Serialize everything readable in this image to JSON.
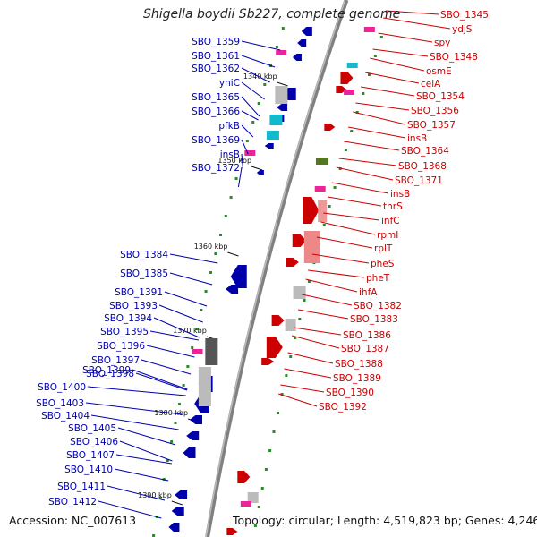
{
  "title": "Shigella boydii Sb227, complete genome",
  "accession": "Accession: NC_007613",
  "topology": "Topology: circular; Length: 4,519,823 bp; Genes: 4,246",
  "colors": {
    "forward": "#0000aa",
    "reverse": "#cc0000",
    "backbone": "#808080",
    "ticks": "#2a8a2a"
  },
  "kbp_markers": [
    "1340 kbp",
    "1350 kbp",
    "1360 kbp",
    "1370 kbp",
    "1380 kbp",
    "1390 kbp"
  ],
  "left_genes": [
    "SBO_1359",
    "SBO_1361",
    "SBO_1362",
    "yniC",
    "SBO_1365",
    "SBO_1366",
    "pfkB",
    "SBO_1369",
    "insB",
    "SBO_1372",
    "SBO_1384",
    "SBO_1385",
    "SBO_1391",
    "SBO_1393",
    "SBO_1394",
    "SBO_1395",
    "SBO_1396",
    "SBO_1397",
    "SBO_1398",
    "SBO_1399",
    "SBO_1400",
    "SBO_1403",
    "SBO_1404",
    "SBO_1405",
    "SBO_1406",
    "SBO_1407",
    "SBO_1410",
    "SBO_1411",
    "SBO_1412"
  ],
  "right_genes": [
    "SBO_1345",
    "ydjS",
    "spy",
    "SBO_1348",
    "osmE",
    "celA",
    "SBO_1354",
    "SBO_1356",
    "SBO_1357",
    "insB",
    "SBO_1364",
    "SBO_1368",
    "SBO_1371",
    "insB",
    "thrS",
    "infC",
    "rpmI",
    "rplT",
    "pheS",
    "pheT",
    "ihfA",
    "SBO_1382",
    "SBO_1383",
    "SBO_1386",
    "SBO_1387",
    "SBO_1388",
    "SBO_1389",
    "SBO_1390",
    "SBO_1392"
  ]
}
